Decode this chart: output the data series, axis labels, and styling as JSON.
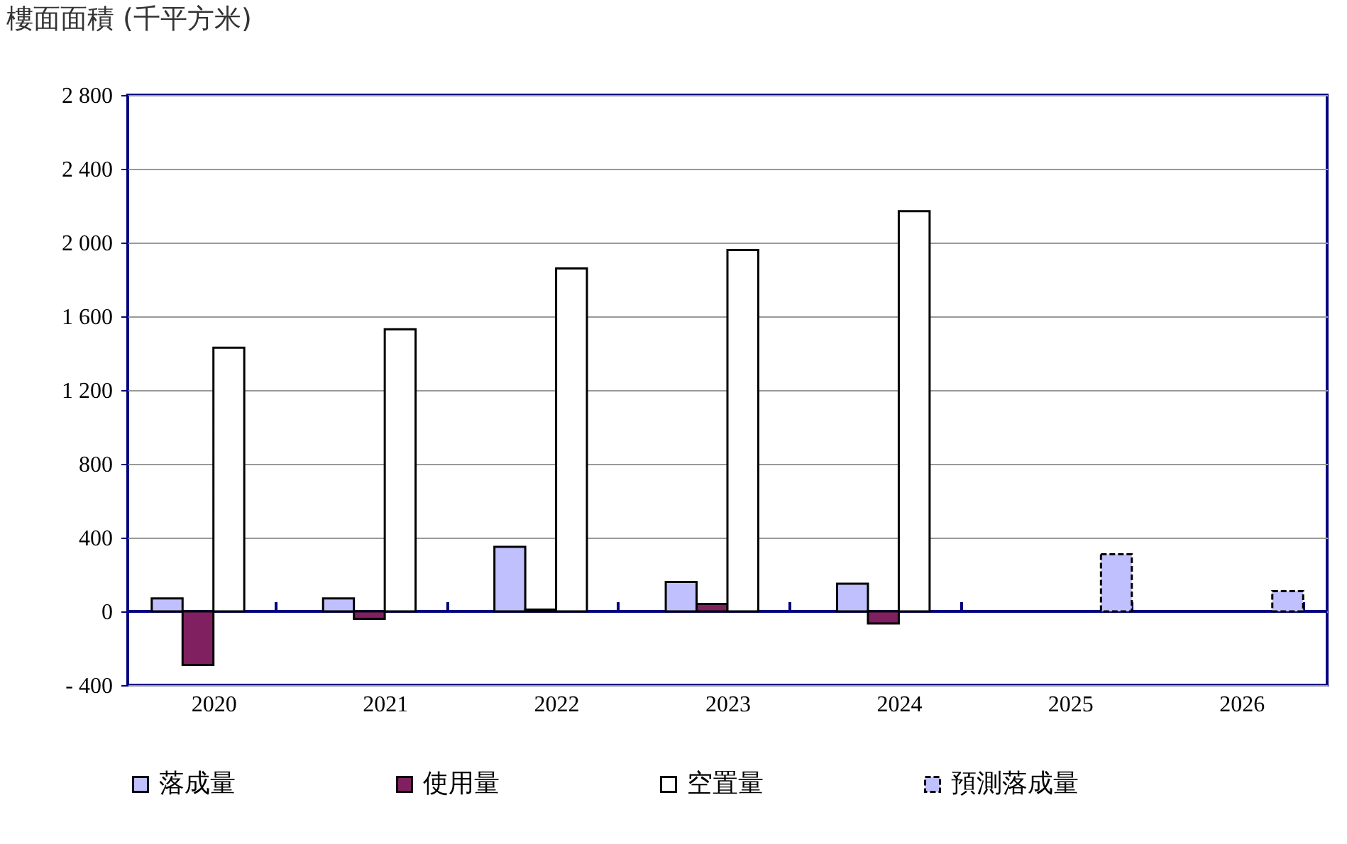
{
  "chart_data": {
    "type": "bar",
    "ylabel": "樓面面積 (千平方米)",
    "categories": [
      "2020",
      "2021",
      "2022",
      "2023",
      "2024",
      "2025",
      "2026"
    ],
    "series": [
      {
        "name": "落成量",
        "color": "#c0c0ff",
        "values": [
          70,
          70,
          350,
          160,
          150,
          null,
          null
        ]
      },
      {
        "name": "使用量",
        "color": "#802060",
        "values": [
          -290,
          -40,
          10,
          40,
          -65,
          null,
          null
        ]
      },
      {
        "name": "空置量",
        "color": "#ffffff",
        "values": [
          1430,
          1530,
          1860,
          1960,
          2170,
          null,
          null
        ]
      },
      {
        "name": "預測落成量",
        "color": "#c0c0ff",
        "line_style": "dashed",
        "values": [
          null,
          null,
          null,
          null,
          null,
          310,
          110
        ]
      }
    ],
    "ylim": [
      -400,
      2800
    ],
    "yticks": [
      {
        "value": -400,
        "label": "- 400"
      },
      0,
      400,
      800,
      {
        "value": 1200,
        "label": "1 200"
      },
      {
        "value": 1600,
        "label": "1 600"
      },
      {
        "value": 2000,
        "label": "2 000"
      },
      {
        "value": 2400,
        "label": "2 400"
      },
      {
        "value": 2800,
        "label": "2 800"
      }
    ],
    "ref_lines": [
      {
        "axis": "y",
        "value": 0,
        "color": "#000080"
      }
    ],
    "grid": "y",
    "legend": "bottom"
  }
}
